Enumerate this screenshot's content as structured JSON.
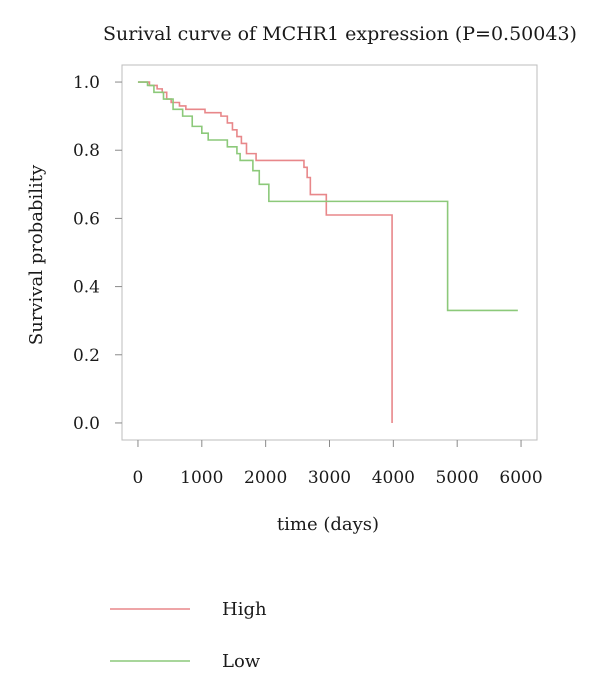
{
  "chart_data": {
    "type": "line",
    "title": "Surival curve of MCHR1 expression (P=0.50043)",
    "xlabel": "time (days)",
    "ylabel": "Survival probability",
    "xlim": [
      -250,
      6250
    ],
    "ylim": [
      -0.05,
      1.05
    ],
    "xticks": [
      "0",
      "1000",
      "2000",
      "3000",
      "4000",
      "5000",
      "6000"
    ],
    "yticks": [
      "0.0",
      "0.2",
      "0.4",
      "0.6",
      "0.8",
      "1.0"
    ],
    "grid": false,
    "legend_position": "bottom-left",
    "series": [
      {
        "name": "High",
        "color": "#e8878a",
        "steps": [
          [
            0,
            1.0
          ],
          [
            180,
            0.99
          ],
          [
            300,
            0.98
          ],
          [
            380,
            0.97
          ],
          [
            450,
            0.95
          ],
          [
            520,
            0.94
          ],
          [
            650,
            0.93
          ],
          [
            750,
            0.92
          ],
          [
            1050,
            0.91
          ],
          [
            1300,
            0.9
          ],
          [
            1400,
            0.88
          ],
          [
            1480,
            0.86
          ],
          [
            1550,
            0.84
          ],
          [
            1620,
            0.82
          ],
          [
            1700,
            0.79
          ],
          [
            1850,
            0.77
          ],
          [
            2600,
            0.75
          ],
          [
            2650,
            0.72
          ],
          [
            2700,
            0.67
          ],
          [
            2950,
            0.61
          ],
          [
            3980,
            0.0
          ]
        ]
      },
      {
        "name": "Low",
        "color": "#8cc97a",
        "steps": [
          [
            0,
            1.0
          ],
          [
            150,
            0.99
          ],
          [
            250,
            0.97
          ],
          [
            400,
            0.95
          ],
          [
            550,
            0.92
          ],
          [
            700,
            0.9
          ],
          [
            850,
            0.87
          ],
          [
            1000,
            0.85
          ],
          [
            1100,
            0.83
          ],
          [
            1400,
            0.81
          ],
          [
            1550,
            0.79
          ],
          [
            1600,
            0.77
          ],
          [
            1800,
            0.74
          ],
          [
            1900,
            0.7
          ],
          [
            2050,
            0.65
          ],
          [
            4850,
            0.33
          ],
          [
            5950,
            0.33
          ]
        ]
      }
    ]
  }
}
